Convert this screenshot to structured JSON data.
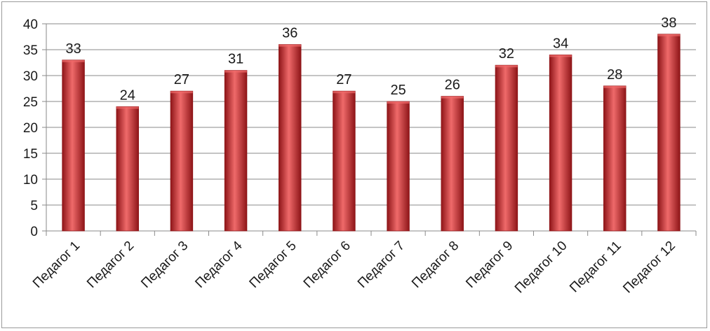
{
  "chart_data": {
    "type": "bar",
    "categories": [
      "Педагог 1",
      "Педагог 2",
      "Педагог 3",
      "Педагог 4",
      "Педагог 5",
      "Педагог 6",
      "Педагог 7",
      "Педагог 8",
      "Педагог 9",
      "Педагог 10",
      "Педагог 11",
      "Педагог 12"
    ],
    "values": [
      33,
      24,
      27,
      31,
      36,
      27,
      25,
      26,
      32,
      34,
      28,
      38
    ],
    "title": "",
    "xlabel": "",
    "ylabel": "",
    "ylim": [
      0,
      40
    ],
    "y_ticks": [
      0,
      5,
      10,
      15,
      20,
      25,
      30,
      35,
      40
    ],
    "grid": true,
    "legend": "none",
    "bar_color": "#c0282c",
    "bar_color_light": "#ef6a6a",
    "bar_color_dark": "#8e1518"
  }
}
